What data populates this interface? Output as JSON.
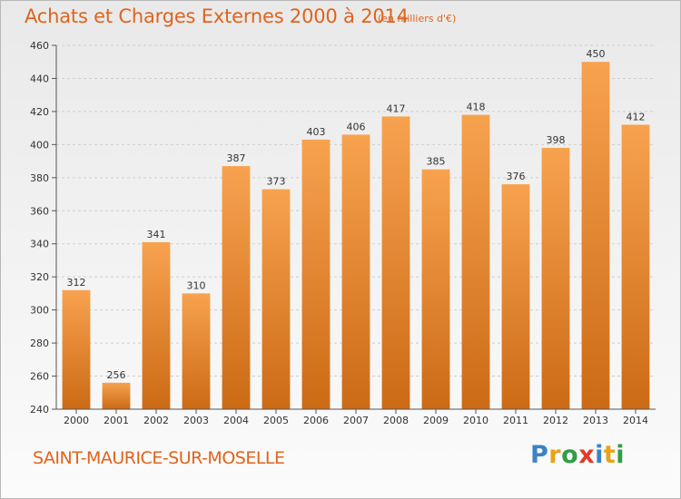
{
  "header": {
    "title": "Achats et Charges Externes 2000 à 2014",
    "subtitle": "(en milliers d'€)"
  },
  "footer": {
    "city": "SAINT-MAURICE-SUR-MOSELLE",
    "logo_letters": [
      "P",
      "r",
      "o",
      "x",
      "i",
      "t",
      "i"
    ],
    "logo_colors": [
      "#3a83c6",
      "#e8a317",
      "#2f9e44",
      "#e23b2a",
      "#3a83c6",
      "#e8a317",
      "#2f9e44"
    ]
  },
  "colors": {
    "bar_light": "#f7a24f",
    "bar_dark": "#cc6a15",
    "accent": "#e0641c"
  },
  "chart_data": {
    "type": "bar",
    "title": "Achats et Charges Externes 2000 à 2014",
    "subtitle": "(en milliers d'€)",
    "categories": [
      "2000",
      "2001",
      "2002",
      "2003",
      "2004",
      "2005",
      "2006",
      "2007",
      "2008",
      "2009",
      "2010",
      "2011",
      "2012",
      "2013",
      "2014"
    ],
    "values": [
      312,
      256,
      341,
      310,
      387,
      373,
      403,
      406,
      417,
      385,
      418,
      376,
      398,
      450,
      412
    ],
    "ylim": [
      240,
      460
    ],
    "yticks": [
      240,
      260,
      280,
      300,
      320,
      340,
      360,
      380,
      400,
      420,
      440,
      460
    ],
    "grid": true,
    "data_labels": true
  }
}
